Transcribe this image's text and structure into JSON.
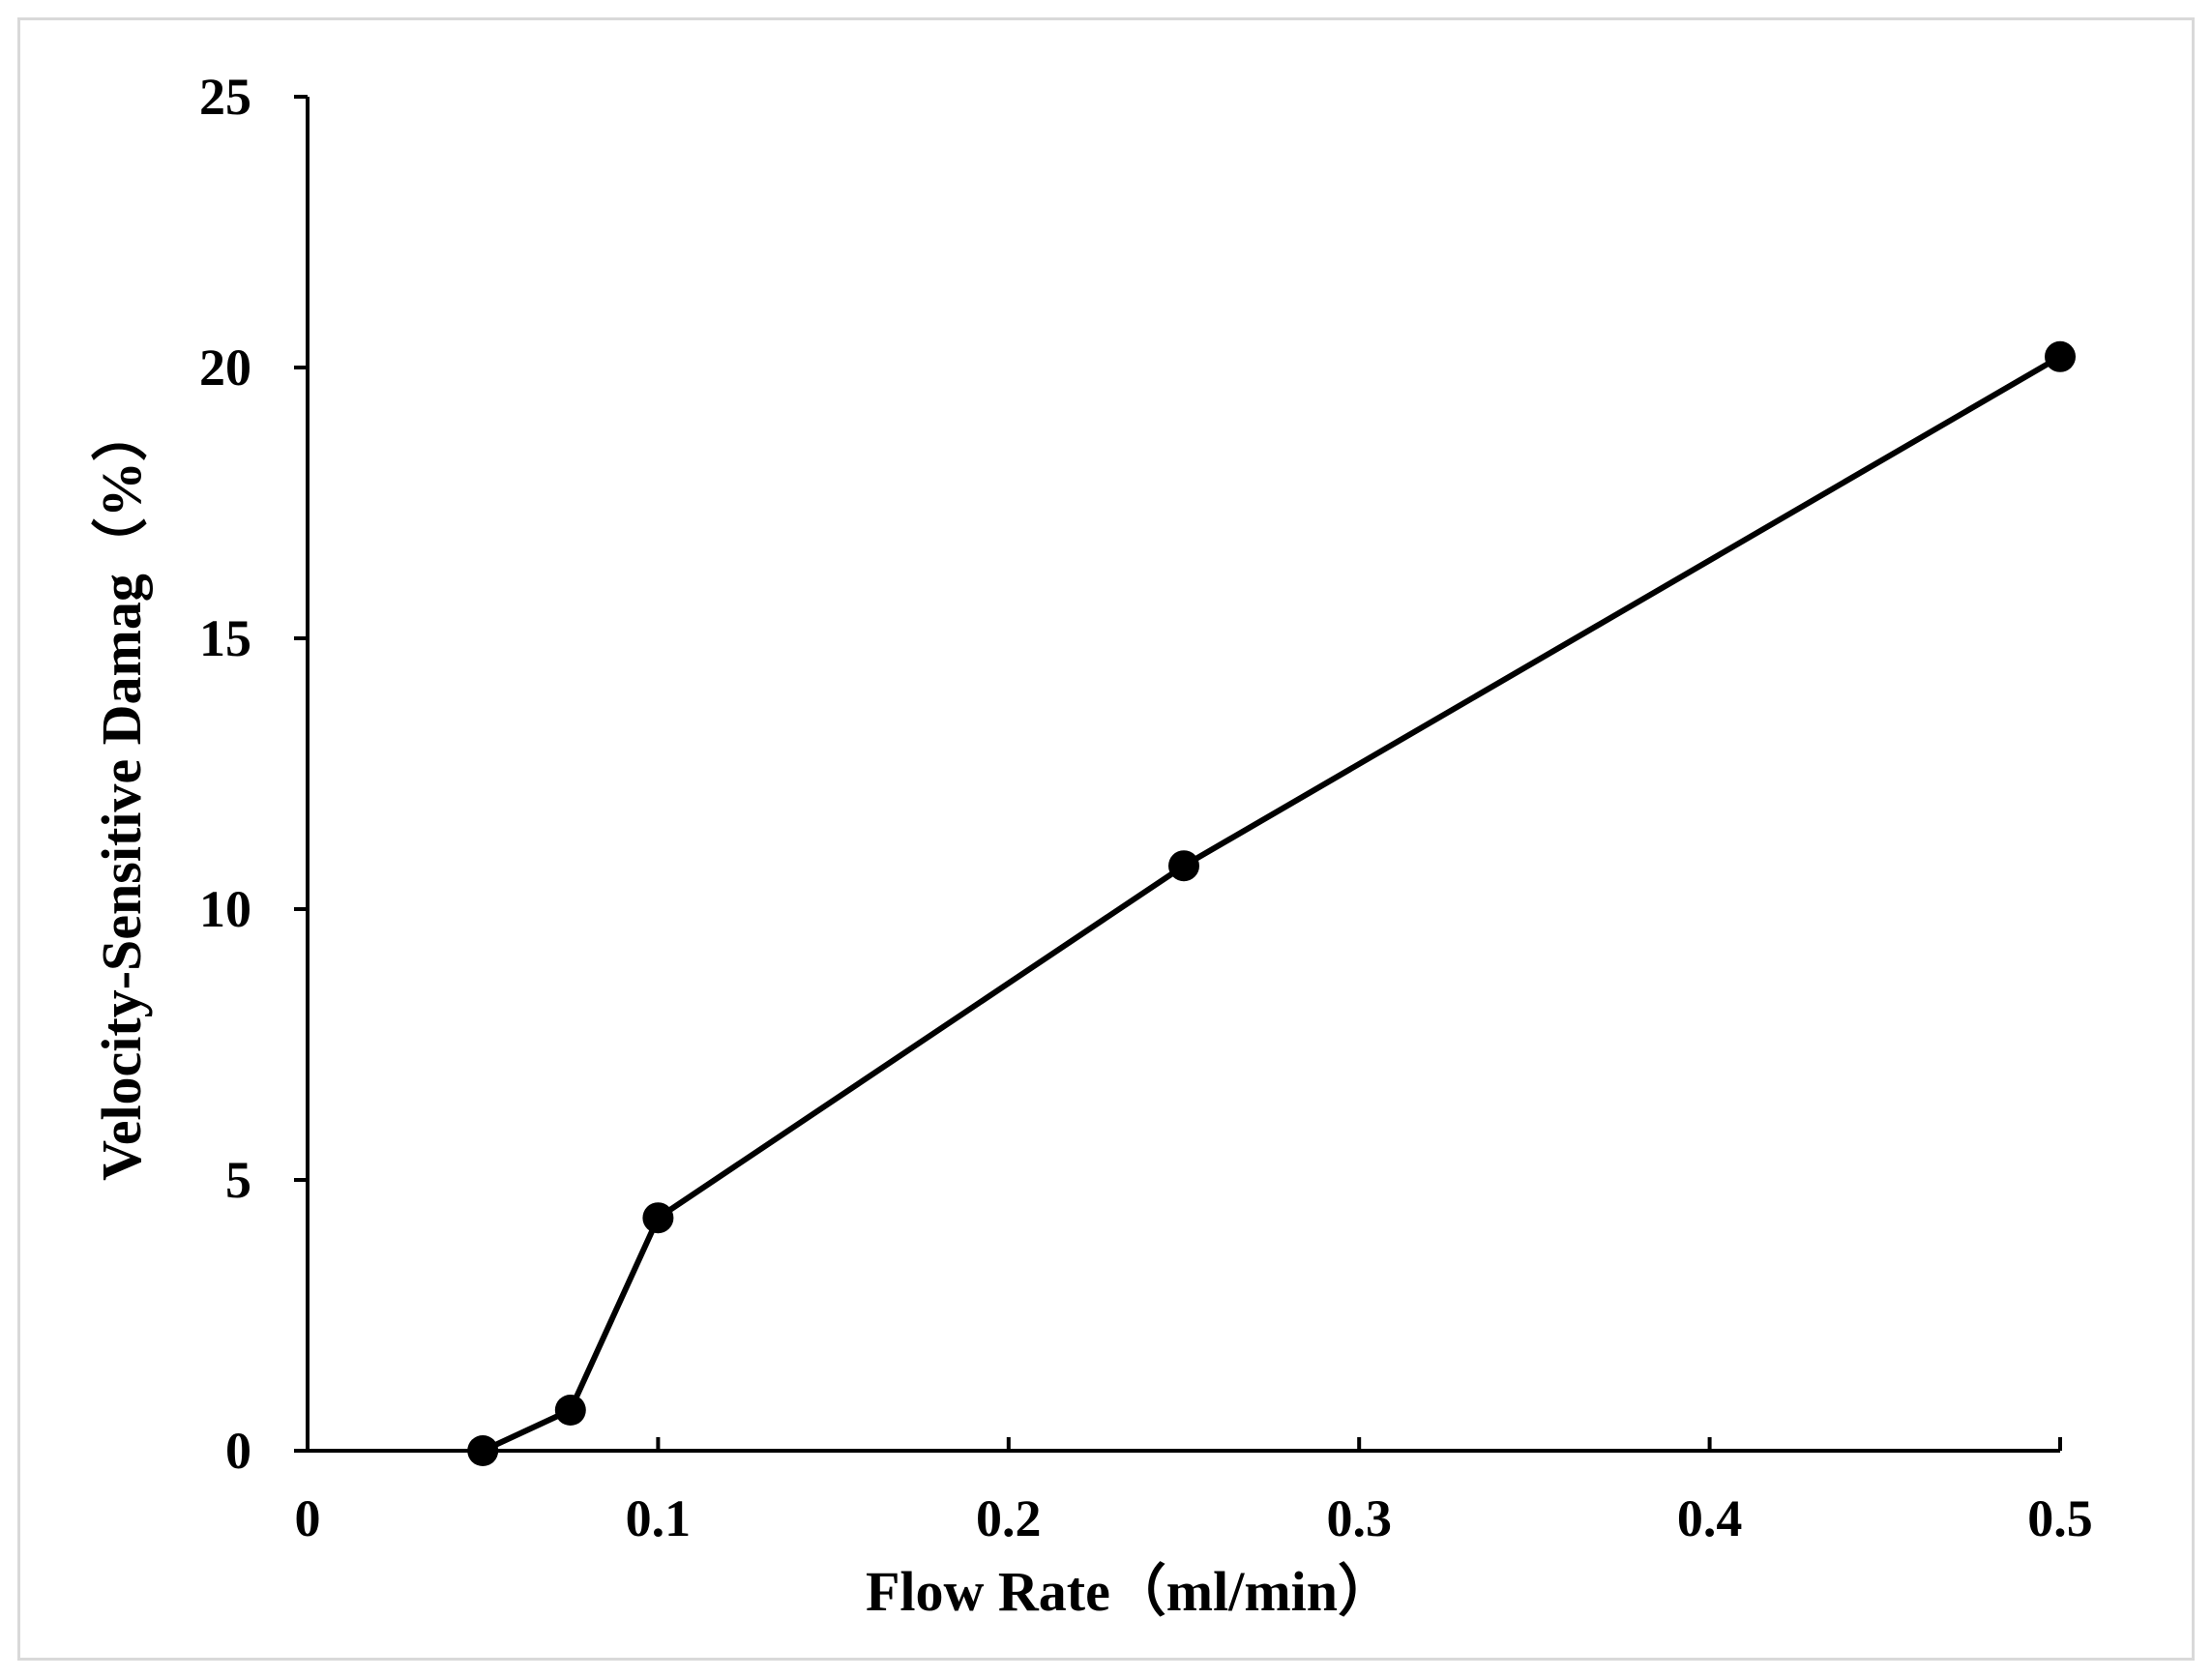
{
  "chart_data": {
    "type": "line",
    "title": "",
    "xlabel": "Flow Rate（ml/min）",
    "ylabel": "Velocity-Sensitive Damag（%）",
    "xlim": [
      0,
      0.5
    ],
    "ylim": [
      0,
      25
    ],
    "x_ticks": [
      0,
      0.1,
      0.2,
      0.3,
      0.4,
      0.5
    ],
    "x_tick_labels": [
      "0",
      "0.1",
      "0.2",
      "0.3",
      "0.4",
      "0.5"
    ],
    "y_ticks": [
      0,
      5,
      10,
      15,
      20,
      25
    ],
    "y_tick_labels": [
      "0",
      "5",
      "10",
      "15",
      "20",
      "25"
    ],
    "grid": false,
    "legend": "none",
    "series": [
      {
        "x": [
          0.05,
          0.075,
          0.1,
          0.25,
          0.5
        ],
        "values": [
          0,
          0.75,
          4.3,
          10.8,
          20.2
        ],
        "color": "#000000",
        "marker": "circle"
      }
    ]
  }
}
